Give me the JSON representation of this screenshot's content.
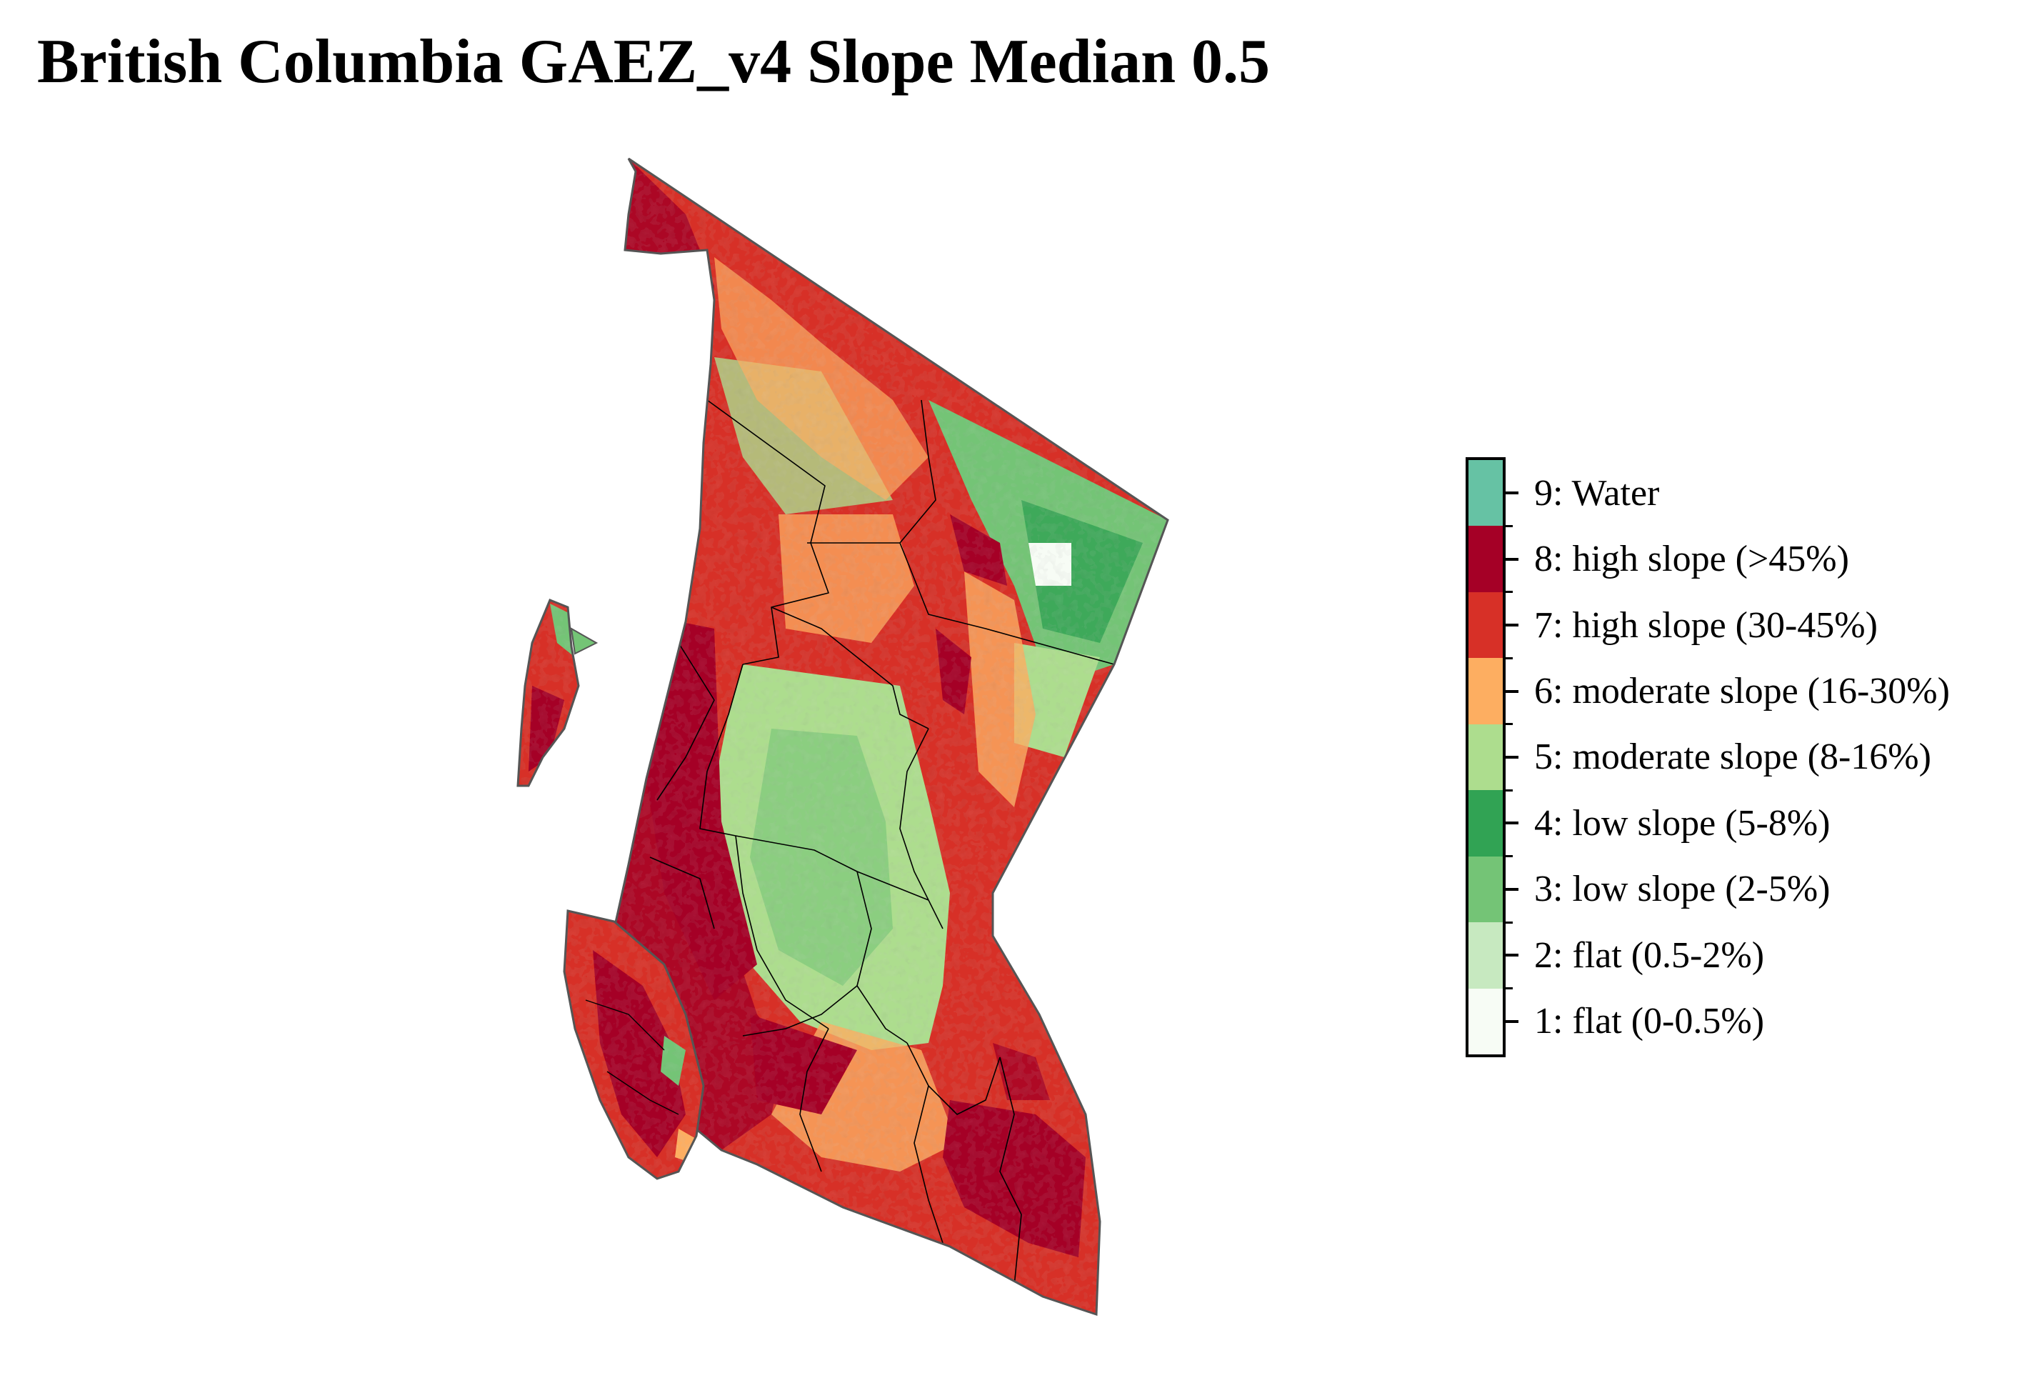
{
  "title": "British Columbia GAEZ_v4 Slope Median 0.5",
  "legend": {
    "classes": [
      {
        "label": "9: Water",
        "color": "#66c2a4"
      },
      {
        "label": "8: high slope (>45%)",
        "color": "#a50026"
      },
      {
        "label": "7: high slope (30-45%)",
        "color": "#d73027"
      },
      {
        "label": "6: moderate slope (16-30%)",
        "color": "#fdae61"
      },
      {
        "label": "5: moderate slope (8-16%)",
        "color": "#addd8e"
      },
      {
        "label": "4: low slope (5-8%)",
        "color": "#31a354"
      },
      {
        "label": "3: low slope (2-5%)",
        "color": "#74c476"
      },
      {
        "label": "2: flat (0.5-2%)",
        "color": "#c7e9c0"
      },
      {
        "label": "1: flat (0-0.5%)",
        "color": "#f7fcf5"
      }
    ]
  }
}
